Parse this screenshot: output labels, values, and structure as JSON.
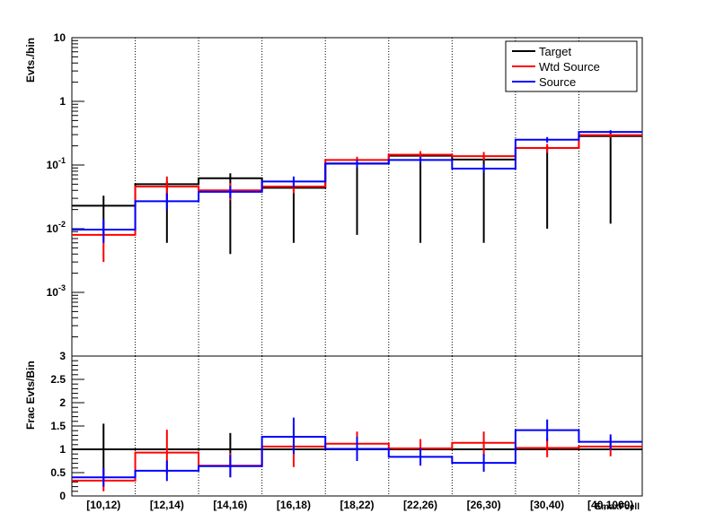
{
  "chart_data": [
    {
      "type": "line",
      "panel": "top",
      "ylabel": "Evts./bin",
      "yscale": "log",
      "ylim": [
        0.0001,
        10
      ],
      "y_ticks": [
        {
          "value": 0.001,
          "base": "10",
          "exp": "-3"
        },
        {
          "value": 0.01,
          "base": "10",
          "exp": "-2"
        },
        {
          "value": 0.1,
          "base": "10",
          "exp": "-1"
        },
        {
          "value": 1,
          "base": "1",
          "exp": ""
        },
        {
          "value": 10,
          "base": "10",
          "exp": ""
        }
      ],
      "categories": [
        "[10,12)",
        "[12,14)",
        "[14,16)",
        "[16,18)",
        "[18,22)",
        "[22,26)",
        "[26,30)",
        "[30,40)",
        "[40,1000)"
      ],
      "legend_position": "top-right",
      "series": [
        {
          "name": "Target",
          "color": "#000000",
          "values": [
            0.023,
            0.05,
            0.062,
            0.044,
            0.106,
            0.14,
            0.122,
            0.185,
            0.285
          ],
          "err_low": [
            0.008,
            0.006,
            0.004,
            0.006,
            0.008,
            0.006,
            0.006,
            0.01,
            0.012
          ],
          "err_high": [
            0.033,
            0.055,
            0.074,
            0.052,
            0.114,
            0.15,
            0.14,
            0.2,
            0.3
          ]
        },
        {
          "name": "Wtd Source",
          "color": "#ff0000",
          "values": [
            0.008,
            0.046,
            0.04,
            0.046,
            0.12,
            0.145,
            0.138,
            0.185,
            0.295
          ],
          "err_low": [
            0.003,
            0.03,
            0.028,
            0.036,
            0.105,
            0.125,
            0.118,
            0.155,
            0.27
          ],
          "err_high": [
            0.013,
            0.066,
            0.052,
            0.058,
            0.135,
            0.165,
            0.16,
            0.215,
            0.32
          ]
        },
        {
          "name": "Source",
          "color": "#0000ff",
          "values": [
            0.0097,
            0.027,
            0.038,
            0.055,
            0.105,
            0.12,
            0.088,
            0.25,
            0.33
          ],
          "err_low": [
            0.006,
            0.02,
            0.03,
            0.044,
            0.092,
            0.108,
            0.076,
            0.225,
            0.31
          ],
          "err_high": [
            0.014,
            0.036,
            0.047,
            0.066,
            0.12,
            0.134,
            0.102,
            0.275,
            0.352
          ]
        }
      ]
    },
    {
      "type": "line",
      "panel": "bottom",
      "ylabel": "Frac Evts/Bin",
      "xlabel": "EmaxFcell",
      "ylim": [
        0,
        3
      ],
      "y_tick_labels": [
        {
          "value": 0,
          "text": "0"
        },
        {
          "value": 0.5,
          "text": "0.5"
        },
        {
          "value": 1,
          "text": "1"
        },
        {
          "value": 1.5,
          "text": "1.5"
        },
        {
          "value": 2,
          "text": "2"
        },
        {
          "value": 2.5,
          "text": "2.5"
        },
        {
          "value": 3,
          "text": "3"
        }
      ],
      "categories": [
        "[10,12)",
        "[12,14)",
        "[14,16)",
        "[16,18)",
        "[18,22)",
        "[22,26)",
        "[26,30)",
        "[30,40)",
        "[40,1000)"
      ],
      "series": [
        {
          "name": "Target",
          "color": "#000000",
          "values": [
            1,
            1,
            1,
            1,
            1,
            1,
            1,
            1,
            1
          ],
          "err_low": [
            0.45,
            1,
            0.65,
            1,
            1,
            1,
            1,
            1,
            1
          ],
          "err_high": [
            1.55,
            1,
            1.35,
            1,
            1,
            1,
            1,
            1,
            1
          ]
        },
        {
          "name": "Wtd Source",
          "color": "#ff0000",
          "values": [
            0.33,
            0.93,
            0.65,
            1.06,
            1.12,
            1.02,
            1.14,
            1.03,
            1.06
          ],
          "err_low": [
            0.1,
            0.48,
            0.4,
            0.62,
            0.85,
            0.82,
            0.86,
            0.83,
            0.85
          ],
          "err_high": [
            0.58,
            1.42,
            0.92,
            1.52,
            1.38,
            1.22,
            1.38,
            1.24,
            1.26
          ]
        },
        {
          "name": "Source",
          "color": "#0000ff",
          "values": [
            0.4,
            0.54,
            0.64,
            1.27,
            1.01,
            0.84,
            0.71,
            1.41,
            1.16
          ],
          "err_low": [
            0.2,
            0.32,
            0.4,
            0.9,
            0.75,
            0.65,
            0.52,
            1.18,
            1.0
          ],
          "err_high": [
            0.6,
            0.76,
            0.88,
            1.68,
            1.27,
            1.03,
            0.9,
            1.64,
            1.32
          ]
        }
      ]
    }
  ]
}
